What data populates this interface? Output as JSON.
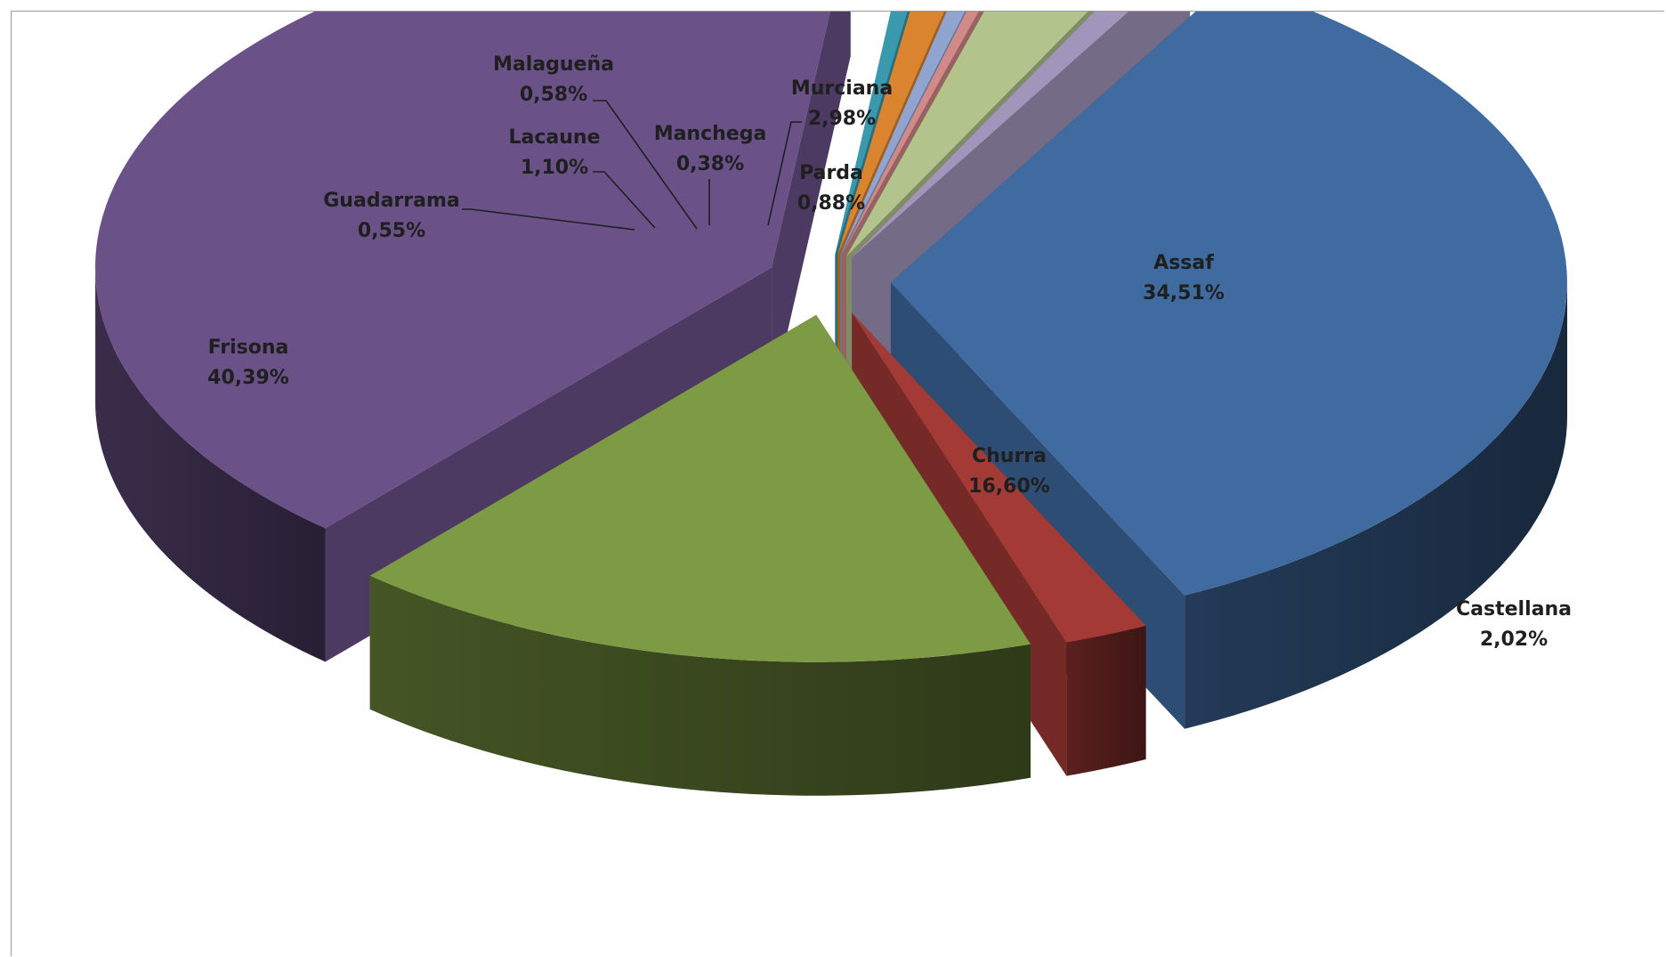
{
  "chart_data": {
    "type": "pie",
    "style": "3d-exploded",
    "title": "",
    "legend": "none",
    "slices": [
      {
        "name": "Assaf",
        "value": 34.51,
        "label": "34,51%",
        "color": "#3F6BA1"
      },
      {
        "name": "Castellana",
        "value": 2.02,
        "label": "2,02%",
        "color": "#A33A36"
      },
      {
        "name": "Churra",
        "value": 16.6,
        "label": "16,60%",
        "color": "#7D9A44"
      },
      {
        "name": "Frisona",
        "value": 40.39,
        "label": "40,39%",
        "color": "#6A5188"
      },
      {
        "name": "Guadarrama",
        "value": 0.55,
        "label": "0,55%",
        "color": "#3A99AE"
      },
      {
        "name": "Lacaune",
        "value": 1.1,
        "label": "1,10%",
        "color": "#DB8430"
      },
      {
        "name": "Malagueña",
        "value": 0.58,
        "label": "0,58%",
        "color": "#8FA5CF"
      },
      {
        "name": "Manchega",
        "value": 0.38,
        "label": "0,38%",
        "color": "#D28A88"
      },
      {
        "name": "Murciana",
        "value": 2.98,
        "label": "2,98%",
        "color": "#B2C38C"
      },
      {
        "name": "Parda",
        "value": 0.88,
        "label": "0,88%",
        "color": "#A195BC"
      }
    ]
  }
}
